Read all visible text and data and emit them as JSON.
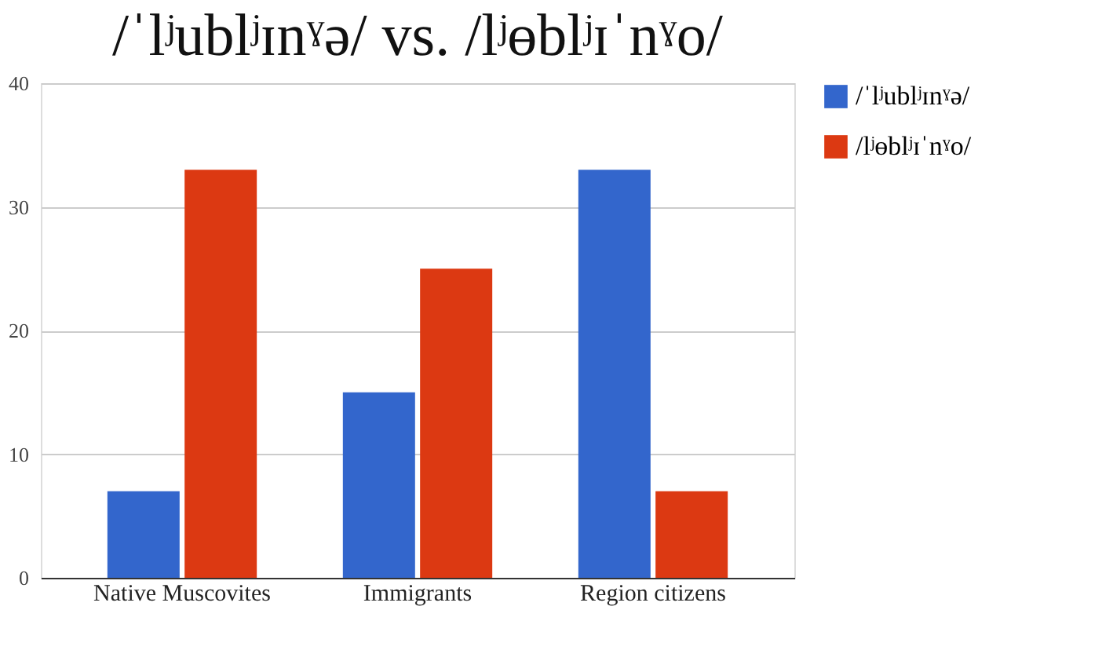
{
  "chart_data": {
    "type": "bar",
    "title": "/ˈlʲublʲɪnˠə/ vs. /lʲɵblʲɪˈnˠo/",
    "categories": [
      "Native Muscovites",
      "Immigrants",
      "Region citizens"
    ],
    "series": [
      {
        "name": "/ˈlʲublʲɪnˠə/",
        "color": "#3366cc",
        "values": [
          7,
          15,
          33
        ]
      },
      {
        "name": "/lʲɵblʲɪˈnˠo/",
        "color": "#dc3912",
        "values": [
          33,
          25,
          7
        ]
      }
    ],
    "ylim": [
      0,
      40
    ],
    "yticks": [
      0,
      10,
      20,
      30,
      40
    ],
    "grid": "y",
    "legend": "top right"
  }
}
